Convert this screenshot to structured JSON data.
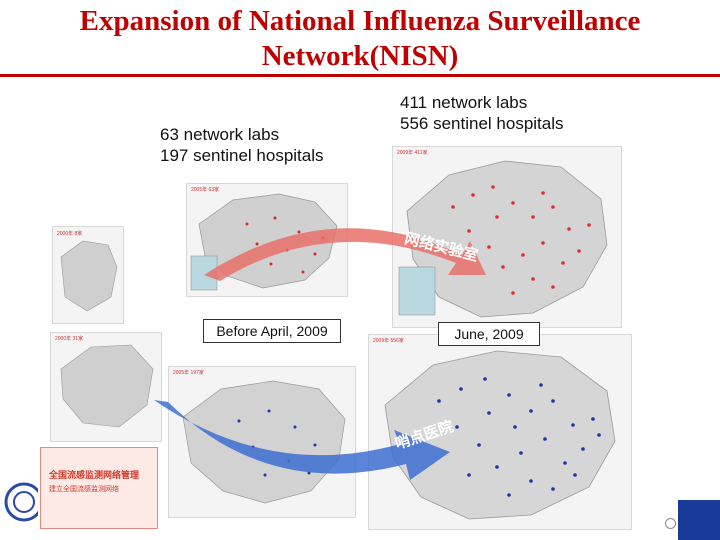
{
  "title": {
    "line1": "Expansion of National Influenza Surveillance",
    "line2": "Network(NISN)"
  },
  "before": {
    "labs": "63 network labs",
    "hospitals": "197 sentinel hospitals",
    "caption": "Before April, 2009"
  },
  "after": {
    "labs": "411 network labs",
    "hospitals": "556 sentinel hospitals",
    "caption": "June, 2009"
  },
  "maps": {
    "lab_2000": "2000年 8家",
    "lab_2005": "2005年 63家",
    "lab_2009": "2009年 411家",
    "hosp_2000": "2000年 31家",
    "hosp_2005": "2005年 197家",
    "hosp_2009": "2009年 556家"
  },
  "arrows": {
    "labs": "网络实验室",
    "hospitals": "哨点医院"
  },
  "legend": {
    "title": "全国流感监测网络管理",
    "subtitle": "建立全国流感监测网络"
  },
  "colors": {
    "title": "#c00000",
    "lab_dot": "#e03030",
    "hosp_dot": "#2233aa",
    "arrow_red": "#e8706a",
    "arrow_blue": "#3d6fd1"
  }
}
